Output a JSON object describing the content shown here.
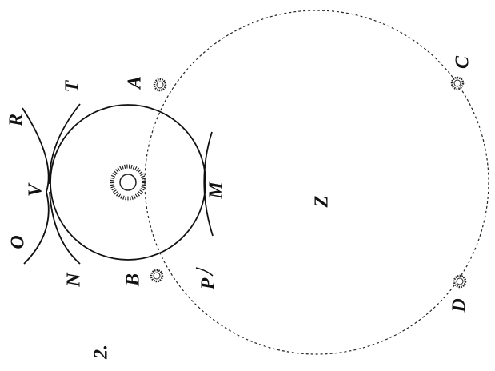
{
  "figure_number": "2.",
  "labels": [
    "A",
    "B",
    "C",
    "D",
    "M",
    "N",
    "O",
    "P",
    "R",
    "T",
    "V",
    "Z"
  ]
}
